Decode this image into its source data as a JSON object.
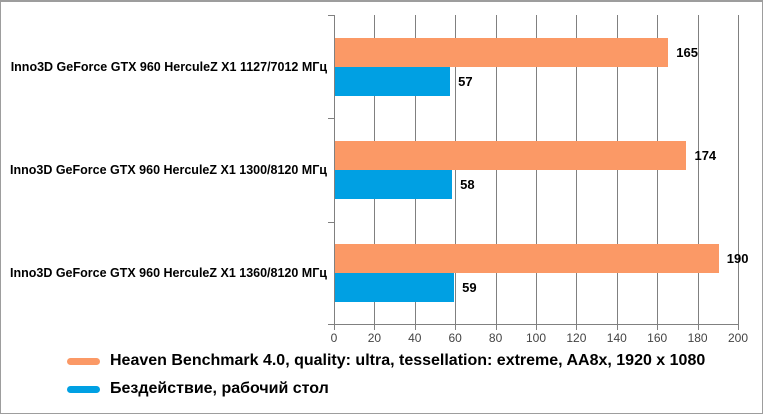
{
  "chart_data": {
    "type": "bar",
    "orientation": "horizontal",
    "title": "",
    "xlabel": "",
    "ylabel": "",
    "xlim": [
      0,
      200
    ],
    "xtick_step": 20,
    "grid": true,
    "value_labels": true,
    "legend_position": "bottom-left",
    "categories": [
      "Inno3D GeForce GTX 960 HerculeZ X1 1127/7012 МГц",
      "Inno3D GeForce GTX 960 HerculeZ X1 1300/8120 МГц",
      "Inno3D GeForce GTX 960 HerculeZ X1 1360/8120 МГц"
    ],
    "series": [
      {
        "name": "Heaven Benchmark 4.0, quality: ultra, tessellation: extreme, AA8x, 1920 x 1080",
        "color": "#FB9966",
        "values": [
          165,
          174,
          190
        ]
      },
      {
        "name": "Бездействие, рабочий стол",
        "color": "#00A0E3",
        "values": [
          57,
          58,
          59
        ]
      }
    ]
  },
  "colors": {
    "background": "#ffffff",
    "canvas_border": "#9d9d9d",
    "gridline": "#808080",
    "axis": "#808080",
    "tick_label": "#444444",
    "value_label": "#000000",
    "category_label": "#000000"
  }
}
